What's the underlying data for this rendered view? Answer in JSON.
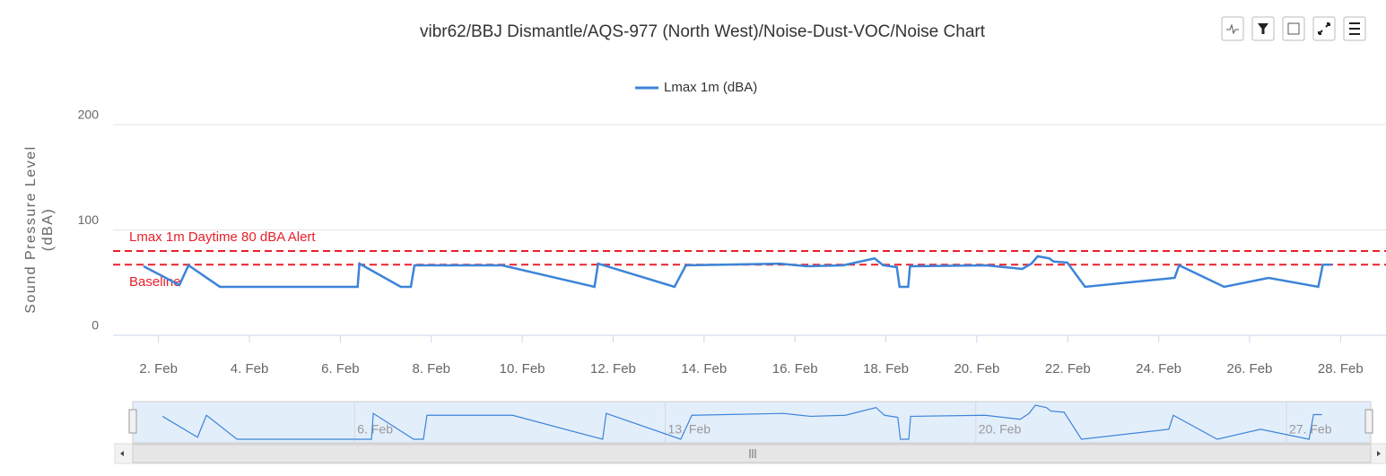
{
  "chart_data": {
    "type": "line",
    "title": "vibr62/BBJ Dismantle/AQS-977 (North West)/Noise-Dust-VOC/Noise Chart",
    "ylabel": "Sound Pressure Level (dBA)",
    "ylim": [
      0,
      200
    ],
    "yticks": [
      0,
      100,
      200
    ],
    "xlim": [
      1,
      29
    ],
    "xticks": [
      {
        "value": 2,
        "label": "2. Feb"
      },
      {
        "value": 4,
        "label": "4. Feb"
      },
      {
        "value": 6,
        "label": "6. Feb"
      },
      {
        "value": 8,
        "label": "8. Feb"
      },
      {
        "value": 10,
        "label": "10. Feb"
      },
      {
        "value": 12,
        "label": "12. Feb"
      },
      {
        "value": 14,
        "label": "14. Feb"
      },
      {
        "value": 16,
        "label": "16. Feb"
      },
      {
        "value": 18,
        "label": "18. Feb"
      },
      {
        "value": 20,
        "label": "20. Feb"
      },
      {
        "value": 22,
        "label": "22. Feb"
      },
      {
        "value": 24,
        "label": "24. Feb"
      },
      {
        "value": 26,
        "label": "26. Feb"
      },
      {
        "value": 28,
        "label": "28. Feb"
      }
    ],
    "grid": true,
    "legend": "top",
    "plot_lines": [
      {
        "value": 80,
        "label": "Lmax 1m Daytime 80 dBA Alert",
        "color": "#e8202a"
      },
      {
        "value": 67,
        "label": "Baseline",
        "color": "#e8202a"
      }
    ],
    "series": [
      {
        "name": "Lmax 1m (dBA)",
        "color": "#3c84d8",
        "x": [
          1.67,
          2.46,
          2.66,
          3.35,
          6.38,
          6.42,
          7.33,
          7.55,
          7.63,
          9.56,
          11.59,
          11.67,
          13.35,
          13.6,
          15.67,
          16.27,
          17.06,
          17.75,
          17.94,
          18.24,
          18.3,
          18.49,
          18.53,
          20.21,
          21.0,
          21.2,
          21.34,
          21.59,
          21.69,
          21.99,
          22.38,
          24.35,
          24.45,
          25.44,
          26.42,
          27.51,
          27.61,
          27.8
        ],
        "values": [
          65.5,
          47.7,
          66.4,
          46,
          46,
          68,
          46,
          46,
          66.4,
          66.4,
          46,
          68,
          46,
          66.4,
          68,
          65.5,
          66.4,
          73,
          66.4,
          64.7,
          46,
          46,
          65.5,
          66.4,
          63,
          68,
          75,
          73,
          70,
          69,
          46,
          54.5,
          66.4,
          46,
          54.5,
          46,
          67,
          67
        ]
      }
    ],
    "navigator": {
      "xlim": [
        1,
        28.9
      ],
      "xticks": [
        {
          "value": 6,
          "label": "6. Feb"
        },
        {
          "value": 13,
          "label": "13. Feb"
        },
        {
          "value": 20,
          "label": "20. Feb"
        },
        {
          "value": 27,
          "label": "27. Feb"
        }
      ]
    }
  }
}
